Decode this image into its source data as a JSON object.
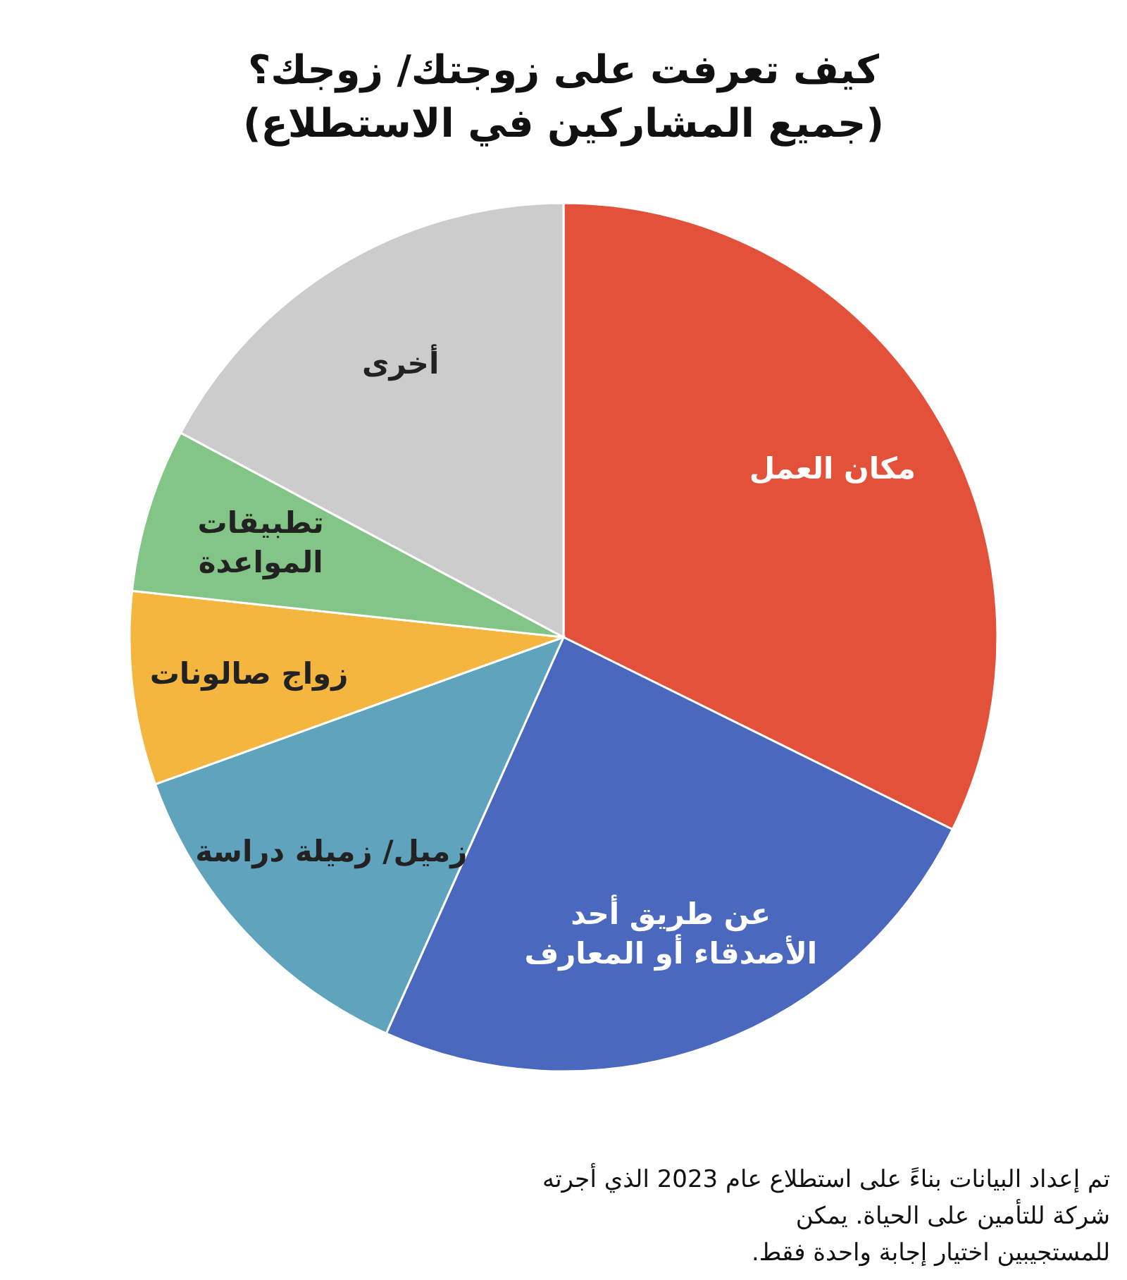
{
  "chart_data": {
    "type": "pie",
    "title": "كيف تعرفت على زوجتك/ زوجك؟\n(جميع المشاركين في الاستطلاع)",
    "categories": [
      "مكان العمل",
      "عن طريق أحد\nالأصدقاء أو المعارف",
      "زميل/ زميلة دراسة",
      "زواج صالونات",
      "تطبيقات\nالمواعدة",
      "أخرى"
    ],
    "values": [
      32.3,
      24.4,
      12.8,
      7.2,
      6.1,
      17.2
    ],
    "colors": [
      "#e4513a",
      "#4a68bd",
      "#5fa3bd",
      "#f4b63e",
      "#83c587",
      "#cccccc"
    ],
    "annotations": [
      "تم إعداد البيانات بناءً على استطلاع عام 2023 الذي أجرته\nشركة للتأمين على الحياة. يمكن\nللمستجيبين اختيار إجابة واحدة فقط."
    ]
  }
}
